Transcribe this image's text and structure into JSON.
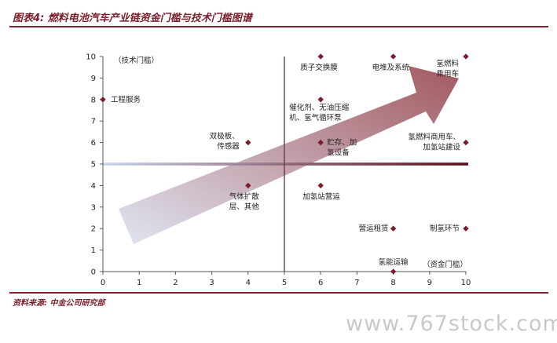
{
  "header": {
    "title": "图表4: 燃料电池汽车产业链资金门槛与技术门槛图谱"
  },
  "footer": {
    "source": "资料来源: 中金公司研究部"
  },
  "watermark": "www.767stock.com",
  "chart_data": {
    "type": "scatter",
    "xlabel": "（资金门槛）",
    "ylabel": "（技术门槛）",
    "xlim": [
      0,
      10
    ],
    "ylim": [
      0,
      10
    ],
    "xticks": [
      0,
      1,
      2,
      3,
      4,
      5,
      6,
      7,
      8,
      9,
      10
    ],
    "yticks": [
      0,
      1,
      2,
      3,
      4,
      5,
      6,
      7,
      8,
      9,
      10
    ],
    "divider_x": 5,
    "divider_y": 5,
    "marker_color": "#7b1e2c",
    "arrow_color_start": "#dde3f0",
    "arrow_color_end": "#9a4a52",
    "points": [
      {
        "x": 0,
        "y": 8,
        "label": [
          "工程服务"
        ]
      },
      {
        "x": 4,
        "y": 6,
        "label": [
          "双极板、",
          "传感器"
        ]
      },
      {
        "x": 4,
        "y": 4,
        "label": [
          "气体扩散",
          "层、其他"
        ]
      },
      {
        "x": 6,
        "y": 10,
        "label": [
          "质子交换膜"
        ]
      },
      {
        "x": 6,
        "y": 8,
        "label": [
          "催化剂、无油压缩",
          "机、氢气循环泵"
        ]
      },
      {
        "x": 6,
        "y": 6,
        "label": [
          "贮存、加",
          "氢设备"
        ]
      },
      {
        "x": 6,
        "y": 4,
        "label": [
          "加氢站营运"
        ]
      },
      {
        "x": 8,
        "y": 10,
        "label": [
          "电堆及系统"
        ]
      },
      {
        "x": 8,
        "y": 2,
        "label": [
          "营运租赁"
        ]
      },
      {
        "x": 8,
        "y": 0,
        "label": [
          "氢能运输"
        ]
      },
      {
        "x": 10,
        "y": 10,
        "label": [
          "氢燃料",
          "乘用车"
        ]
      },
      {
        "x": 10,
        "y": 6,
        "label": [
          "氢燃料商用车、",
          "加氢站建设"
        ]
      },
      {
        "x": 10,
        "y": 2,
        "label": [
          "制氢环节"
        ]
      }
    ]
  }
}
